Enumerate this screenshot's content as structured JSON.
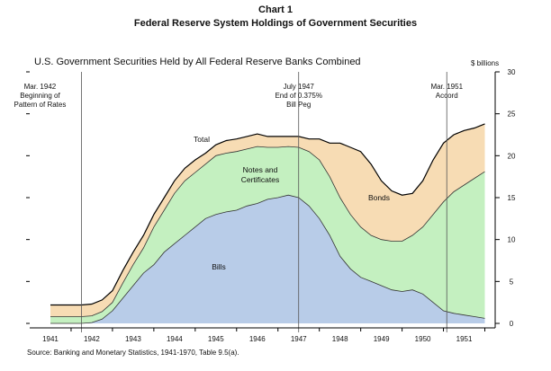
{
  "header": {
    "chart_number": "Chart 1",
    "title": "Federal Reserve System Holdings of Government Securities",
    "subtitle": "U.S. Government Securities Held by All Federal Reserve Banks Combined",
    "unit_label": "$ billions"
  },
  "source": "Source:  Banking and Monetary Statistics, 1941-1970, Table 9.5(a).",
  "chart_data": {
    "type": "area",
    "stacked": true,
    "title": "Federal Reserve System Holdings of Government Securities",
    "subtitle": "U.S. Government Securities Held by All Federal Reserve Banks Combined",
    "ylabel": "$ billions",
    "xlabel": "",
    "ylim": [
      0,
      30
    ],
    "y_ticks": [
      0,
      5,
      10,
      15,
      20,
      25,
      30
    ],
    "y_axis_side": "right",
    "x_tick_labels": [
      "1941",
      "1942",
      "1943",
      "1944",
      "1945",
      "1946",
      "1947",
      "1948",
      "1949",
      "1950",
      "1951"
    ],
    "grid": false,
    "legend": "none (direct labels)",
    "x": [
      "1941.0",
      "1941.25",
      "1941.5",
      "1941.75",
      "1942.0",
      "1942.25",
      "1942.5",
      "1942.75",
      "1943.0",
      "1943.25",
      "1943.5",
      "1943.75",
      "1944.0",
      "1944.25",
      "1944.5",
      "1944.75",
      "1945.0",
      "1945.25",
      "1945.5",
      "1945.75",
      "1946.0",
      "1946.25",
      "1946.5",
      "1946.75",
      "1947.0",
      "1947.25",
      "1947.5",
      "1947.75",
      "1948.0",
      "1948.25",
      "1948.5",
      "1948.75",
      "1949.0",
      "1949.25",
      "1949.5",
      "1949.75",
      "1950.0",
      "1950.25",
      "1950.5",
      "1950.75",
      "1951.0",
      "1951.25",
      "1951.5"
    ],
    "series": [
      {
        "name": "Bills",
        "color": "#b8cce8",
        "values": [
          0,
          0,
          0,
          0,
          0.1,
          0.5,
          1.5,
          3.0,
          4.5,
          6.0,
          7.0,
          8.5,
          9.5,
          10.5,
          11.5,
          12.5,
          13.0,
          13.3,
          13.5,
          14.0,
          14.3,
          14.8,
          15.0,
          15.3,
          15.0,
          14.0,
          12.5,
          10.5,
          8.0,
          6.5,
          5.5,
          5.0,
          4.5,
          4.0,
          3.8,
          4.0,
          3.5,
          2.5,
          1.5,
          1.2,
          1.0,
          0.8,
          0.6
        ]
      },
      {
        "name": "Notes and Certificates",
        "color": "#c4f0c0",
        "values": [
          0.8,
          0.8,
          0.8,
          0.8,
          0.8,
          0.9,
          1.0,
          1.8,
          2.5,
          3.0,
          4.5,
          5.0,
          6.0,
          6.5,
          6.5,
          6.5,
          7.0,
          7.0,
          7.0,
          6.8,
          6.8,
          6.2,
          6.0,
          5.8,
          6.0,
          6.5,
          7.0,
          7.0,
          7.0,
          6.5,
          6.0,
          5.5,
          5.5,
          5.8,
          6.0,
          6.5,
          8.0,
          10.5,
          13.0,
          14.5,
          15.5,
          16.5,
          17.5
        ]
      },
      {
        "name": "Bonds",
        "color": "#f7dcb4",
        "values": [
          1.4,
          1.4,
          1.4,
          1.4,
          1.4,
          1.4,
          1.4,
          1.5,
          1.5,
          1.5,
          1.5,
          1.5,
          1.5,
          1.5,
          1.5,
          1.3,
          1.3,
          1.5,
          1.5,
          1.5,
          1.5,
          1.3,
          1.3,
          1.2,
          1.3,
          1.5,
          2.5,
          4.0,
          6.5,
          8.0,
          9.0,
          8.5,
          7.0,
          6.0,
          5.5,
          5.0,
          5.5,
          6.5,
          7.0,
          6.8,
          6.5,
          6.0,
          5.7
        ]
      }
    ],
    "total_label": "Total",
    "series_labels": [
      "Bills",
      "Notes and Certificates",
      "Bonds",
      "Total"
    ],
    "annotations": [
      {
        "x": 1941.75,
        "text": [
          "Mar. 1942",
          "Beginning of",
          "Pattern of Rates"
        ]
      },
      {
        "x": 1947.0,
        "text": [
          "July 1947",
          "End of 0.375%",
          "Bill Peg"
        ]
      },
      {
        "x": 1950.58,
        "text": [
          "Mar. 1951",
          "Accord"
        ]
      }
    ]
  }
}
